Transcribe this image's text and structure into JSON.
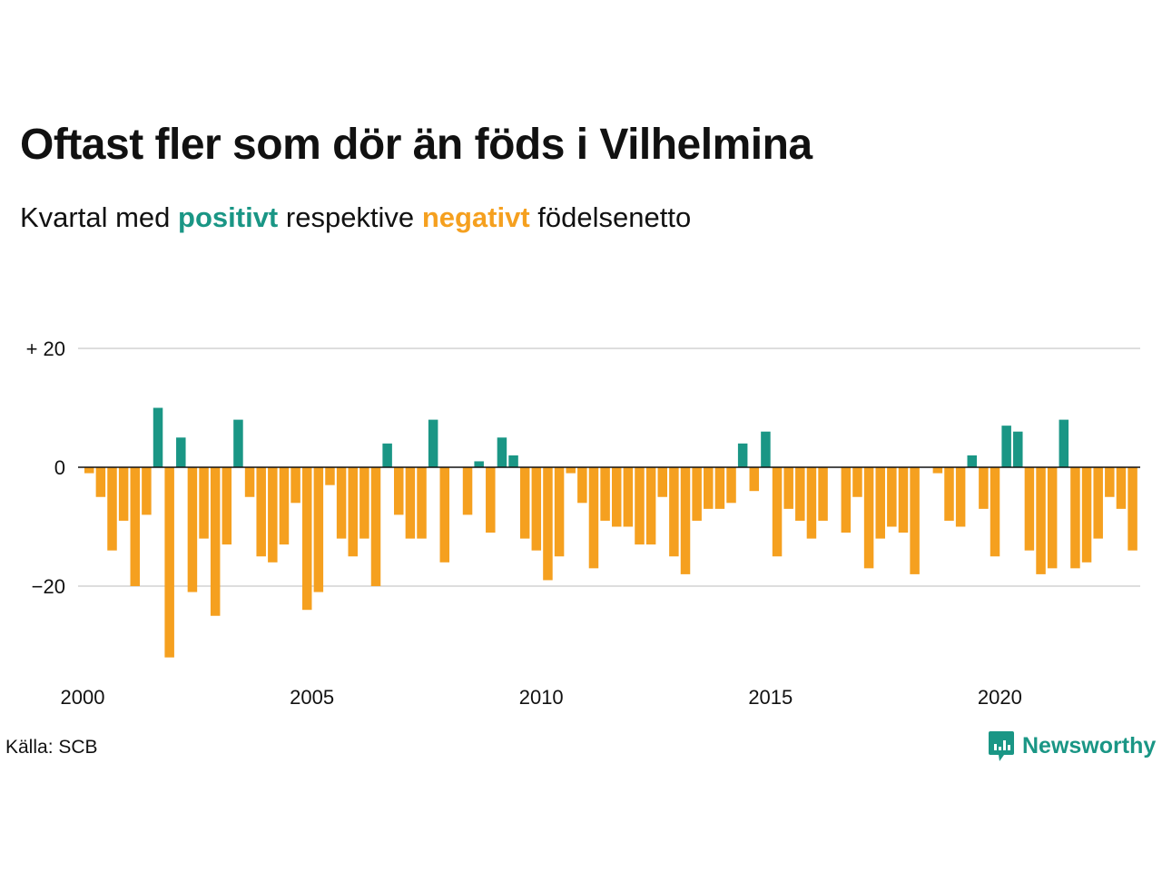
{
  "title": "Oftast fler som dör än föds i Vilhelmina",
  "subtitle": {
    "prefix": "Kvartal med",
    "positive_word": "positivt",
    "middle": "respektive",
    "negative_word": "negativt",
    "suffix": "födelsenetto"
  },
  "source": "Källa: SCB",
  "logo": {
    "text": "Newsworthy",
    "icon": "newsworthy-chart-bubble-icon"
  },
  "colors": {
    "positive": "#1a9685",
    "negative": "#f5a01f",
    "grid": "#dddddd",
    "zero": "#111111"
  },
  "chart_data": {
    "type": "bar",
    "x_start": "2000 Q1",
    "x_ticks": [
      "2000",
      "2005",
      "2010",
      "2015",
      "2020"
    ],
    "y_ticks": [
      {
        "value": 20,
        "label": "+ 20"
      },
      {
        "value": 0,
        "label": "0"
      },
      {
        "value": -20,
        "label": "−20"
      }
    ],
    "ylim": [
      -35,
      20
    ],
    "grid": "horizontal",
    "values": [
      -1,
      -5,
      -14,
      -9,
      -20,
      -8,
      10,
      -32,
      5,
      -21,
      -12,
      -25,
      -13,
      8,
      -5,
      -15,
      -16,
      -13,
      -6,
      -24,
      -21,
      -3,
      -12,
      -15,
      -12,
      -20,
      4,
      -8,
      -12,
      -12,
      8,
      -16,
      0,
      -8,
      1,
      -11,
      5,
      2,
      -12,
      -14,
      -19,
      -15,
      -1,
      -6,
      -17,
      -9,
      -10,
      -10,
      -13,
      -13,
      -5,
      -15,
      -18,
      -9,
      -7,
      -7,
      -6,
      4,
      -4,
      6,
      -15,
      -7,
      -9,
      -12,
      -9,
      0,
      -11,
      -5,
      -17,
      -12,
      -10,
      -11,
      -18,
      0,
      -1,
      -9,
      -10,
      2,
      -7,
      -15,
      7,
      6,
      -14,
      -18,
      -17,
      8,
      -17,
      -16,
      -12,
      -5,
      -7,
      -14
    ]
  }
}
